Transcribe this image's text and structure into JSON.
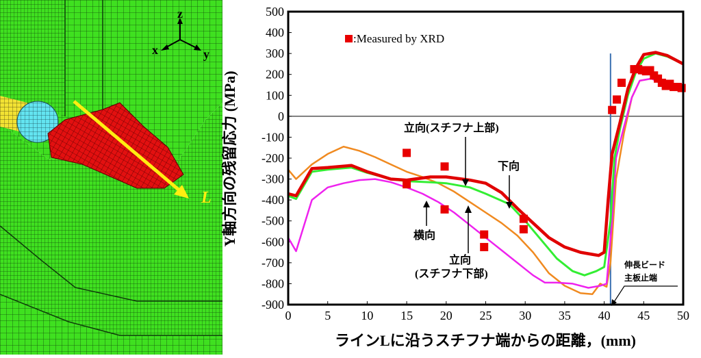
{
  "mesh_panel": {
    "axis_labels": {
      "z": "z",
      "x": "x",
      "y": "y"
    },
    "path_label": "L",
    "colors": {
      "mesh_fill": "#3fe020",
      "mesh_line": "#0f3d0a",
      "weld_bead": "#e21010",
      "stiffener_end": "#63e4f0",
      "stiffener_tail": "#f2e233",
      "path_line": "#ffee11"
    }
  },
  "chart_data": {
    "type": "line",
    "xlabel": "ラインLに沿うスチフナ端からの距離，(mm)",
    "ylabel": "Y軸方向の残留応力 (MPa)",
    "xlim": [
      0,
      50
    ],
    "ylim": [
      -900,
      500
    ],
    "xticks": [
      0,
      5,
      10,
      15,
      20,
      25,
      30,
      35,
      40,
      45,
      50
    ],
    "yticks": [
      500,
      400,
      300,
      200,
      100,
      0,
      -100,
      -200,
      -300,
      -400,
      -500,
      -600,
      -700,
      -800,
      -900
    ],
    "zero_line": 0,
    "vertical_marker_x": 40.8,
    "legend": {
      "marker_label": ":Measured by XRD",
      "position": "top-left"
    },
    "series": [
      {
        "name": "下向",
        "color": "#e00000",
        "width": 4.5,
        "points": [
          [
            0,
            -370
          ],
          [
            1,
            -380
          ],
          [
            3,
            -250
          ],
          [
            5,
            -245
          ],
          [
            8,
            -235
          ],
          [
            10,
            -265
          ],
          [
            13,
            -300
          ],
          [
            15,
            -305
          ],
          [
            18,
            -290
          ],
          [
            20,
            -290
          ],
          [
            23,
            -305
          ],
          [
            25,
            -320
          ],
          [
            27,
            -365
          ],
          [
            29,
            -440
          ],
          [
            31,
            -510
          ],
          [
            33,
            -580
          ],
          [
            35,
            -625
          ],
          [
            37,
            -650
          ],
          [
            38.5,
            -660
          ],
          [
            39.3,
            -665
          ],
          [
            40,
            -650
          ],
          [
            40.5,
            -400
          ],
          [
            41,
            -180
          ],
          [
            42,
            -30
          ],
          [
            43,
            130
          ],
          [
            44,
            230
          ],
          [
            45,
            295
          ],
          [
            46.5,
            305
          ],
          [
            48,
            290
          ],
          [
            50,
            250
          ]
        ]
      },
      {
        "name": "立向(スチフナ上部)",
        "color": "#33ee33",
        "width": 3,
        "points": [
          [
            0,
            -380
          ],
          [
            1,
            -395
          ],
          [
            3,
            -265
          ],
          [
            5,
            -255
          ],
          [
            8,
            -245
          ],
          [
            10,
            -270
          ],
          [
            13,
            -300
          ],
          [
            15,
            -310
          ],
          [
            18,
            -315
          ],
          [
            20,
            -320
          ],
          [
            23,
            -340
          ],
          [
            25,
            -370
          ],
          [
            28,
            -420
          ],
          [
            30,
            -500
          ],
          [
            32,
            -590
          ],
          [
            34,
            -680
          ],
          [
            36,
            -740
          ],
          [
            37.5,
            -760
          ],
          [
            39,
            -740
          ],
          [
            40,
            -720
          ],
          [
            40.8,
            -500
          ],
          [
            41.3,
            -200
          ],
          [
            42,
            -60
          ],
          [
            43,
            100
          ],
          [
            44,
            210
          ],
          [
            45,
            275
          ],
          [
            46.5,
            300
          ],
          [
            48,
            285
          ],
          [
            50,
            250
          ]
        ]
      },
      {
        "name": "立向(スチフナ下部)",
        "color": "#f08a20",
        "width": 2.5,
        "points": [
          [
            0,
            -255
          ],
          [
            1,
            -300
          ],
          [
            3,
            -230
          ],
          [
            5,
            -180
          ],
          [
            7,
            -145
          ],
          [
            9,
            -165
          ],
          [
            11,
            -195
          ],
          [
            13,
            -230
          ],
          [
            15,
            -265
          ],
          [
            17,
            -290
          ],
          [
            19,
            -320
          ],
          [
            21,
            -360
          ],
          [
            23,
            -410
          ],
          [
            25,
            -460
          ],
          [
            27,
            -510
          ],
          [
            29,
            -570
          ],
          [
            31,
            -650
          ],
          [
            33,
            -750
          ],
          [
            35,
            -810
          ],
          [
            37,
            -845
          ],
          [
            38.5,
            -850
          ],
          [
            39.5,
            -800
          ],
          [
            40.3,
            -815
          ],
          [
            40.8,
            -700
          ],
          [
            41.5,
            -300
          ],
          [
            42.5,
            -80
          ],
          [
            43.5,
            90
          ],
          [
            44.5,
            170
          ],
          [
            46,
            180
          ],
          [
            47,
            170
          ]
        ]
      },
      {
        "name": "横向",
        "color": "#ee22ee",
        "width": 2.5,
        "points": [
          [
            0,
            -580
          ],
          [
            1,
            -645
          ],
          [
            3,
            -400
          ],
          [
            5,
            -340
          ],
          [
            7,
            -320
          ],
          [
            9,
            -305
          ],
          [
            11,
            -300
          ],
          [
            13,
            -315
          ],
          [
            15,
            -340
          ],
          [
            17,
            -370
          ],
          [
            19,
            -410
          ],
          [
            21,
            -460
          ],
          [
            23,
            -520
          ],
          [
            25,
            -580
          ],
          [
            27,
            -640
          ],
          [
            29,
            -700
          ],
          [
            31,
            -760
          ],
          [
            32.5,
            -795
          ],
          [
            34,
            -795
          ],
          [
            36,
            -800
          ],
          [
            38,
            -820
          ],
          [
            39.5,
            -810
          ],
          [
            40.3,
            -800
          ],
          [
            41,
            -500
          ],
          [
            41.5,
            -200
          ],
          [
            42.5,
            -50
          ],
          [
            43.5,
            90
          ],
          [
            44.5,
            170
          ],
          [
            46,
            180
          ],
          [
            47,
            160
          ]
        ]
      }
    ],
    "xrd_points": [
      [
        15,
        -175
      ],
      [
        15,
        -325
      ],
      [
        19.8,
        -240
      ],
      [
        19.8,
        -445
      ],
      [
        24.8,
        -565
      ],
      [
        24.8,
        -625
      ],
      [
        29.8,
        -490
      ],
      [
        29.8,
        -540
      ],
      [
        41,
        30
      ],
      [
        41.6,
        80
      ],
      [
        42.2,
        160
      ],
      [
        43.8,
        225
      ],
      [
        44.3,
        225
      ],
      [
        44.8,
        220
      ],
      [
        45.3,
        215
      ],
      [
        45.8,
        220
      ],
      [
        46.3,
        195
      ],
      [
        46.8,
        180
      ],
      [
        47.3,
        160
      ],
      [
        47.8,
        145
      ],
      [
        48.3,
        155
      ],
      [
        48.8,
        140
      ],
      [
        49.3,
        140
      ],
      [
        49.8,
        135
      ]
    ],
    "annotations": [
      {
        "text": "立向(スチフナ上部)",
        "lines": [
          "立向(スチフナ上部)"
        ]
      },
      {
        "text": "下向",
        "lines": [
          "下向"
        ]
      },
      {
        "text": "横向",
        "lines": [
          "横向"
        ]
      },
      {
        "text": "立向\n(スチフナ下部)",
        "lines": [
          "立向",
          "(スチフナ下部)"
        ]
      },
      {
        "text": "伸長ビード\n主板止端",
        "lines": [
          "伸長ビード",
          "主板止端"
        ]
      }
    ]
  }
}
